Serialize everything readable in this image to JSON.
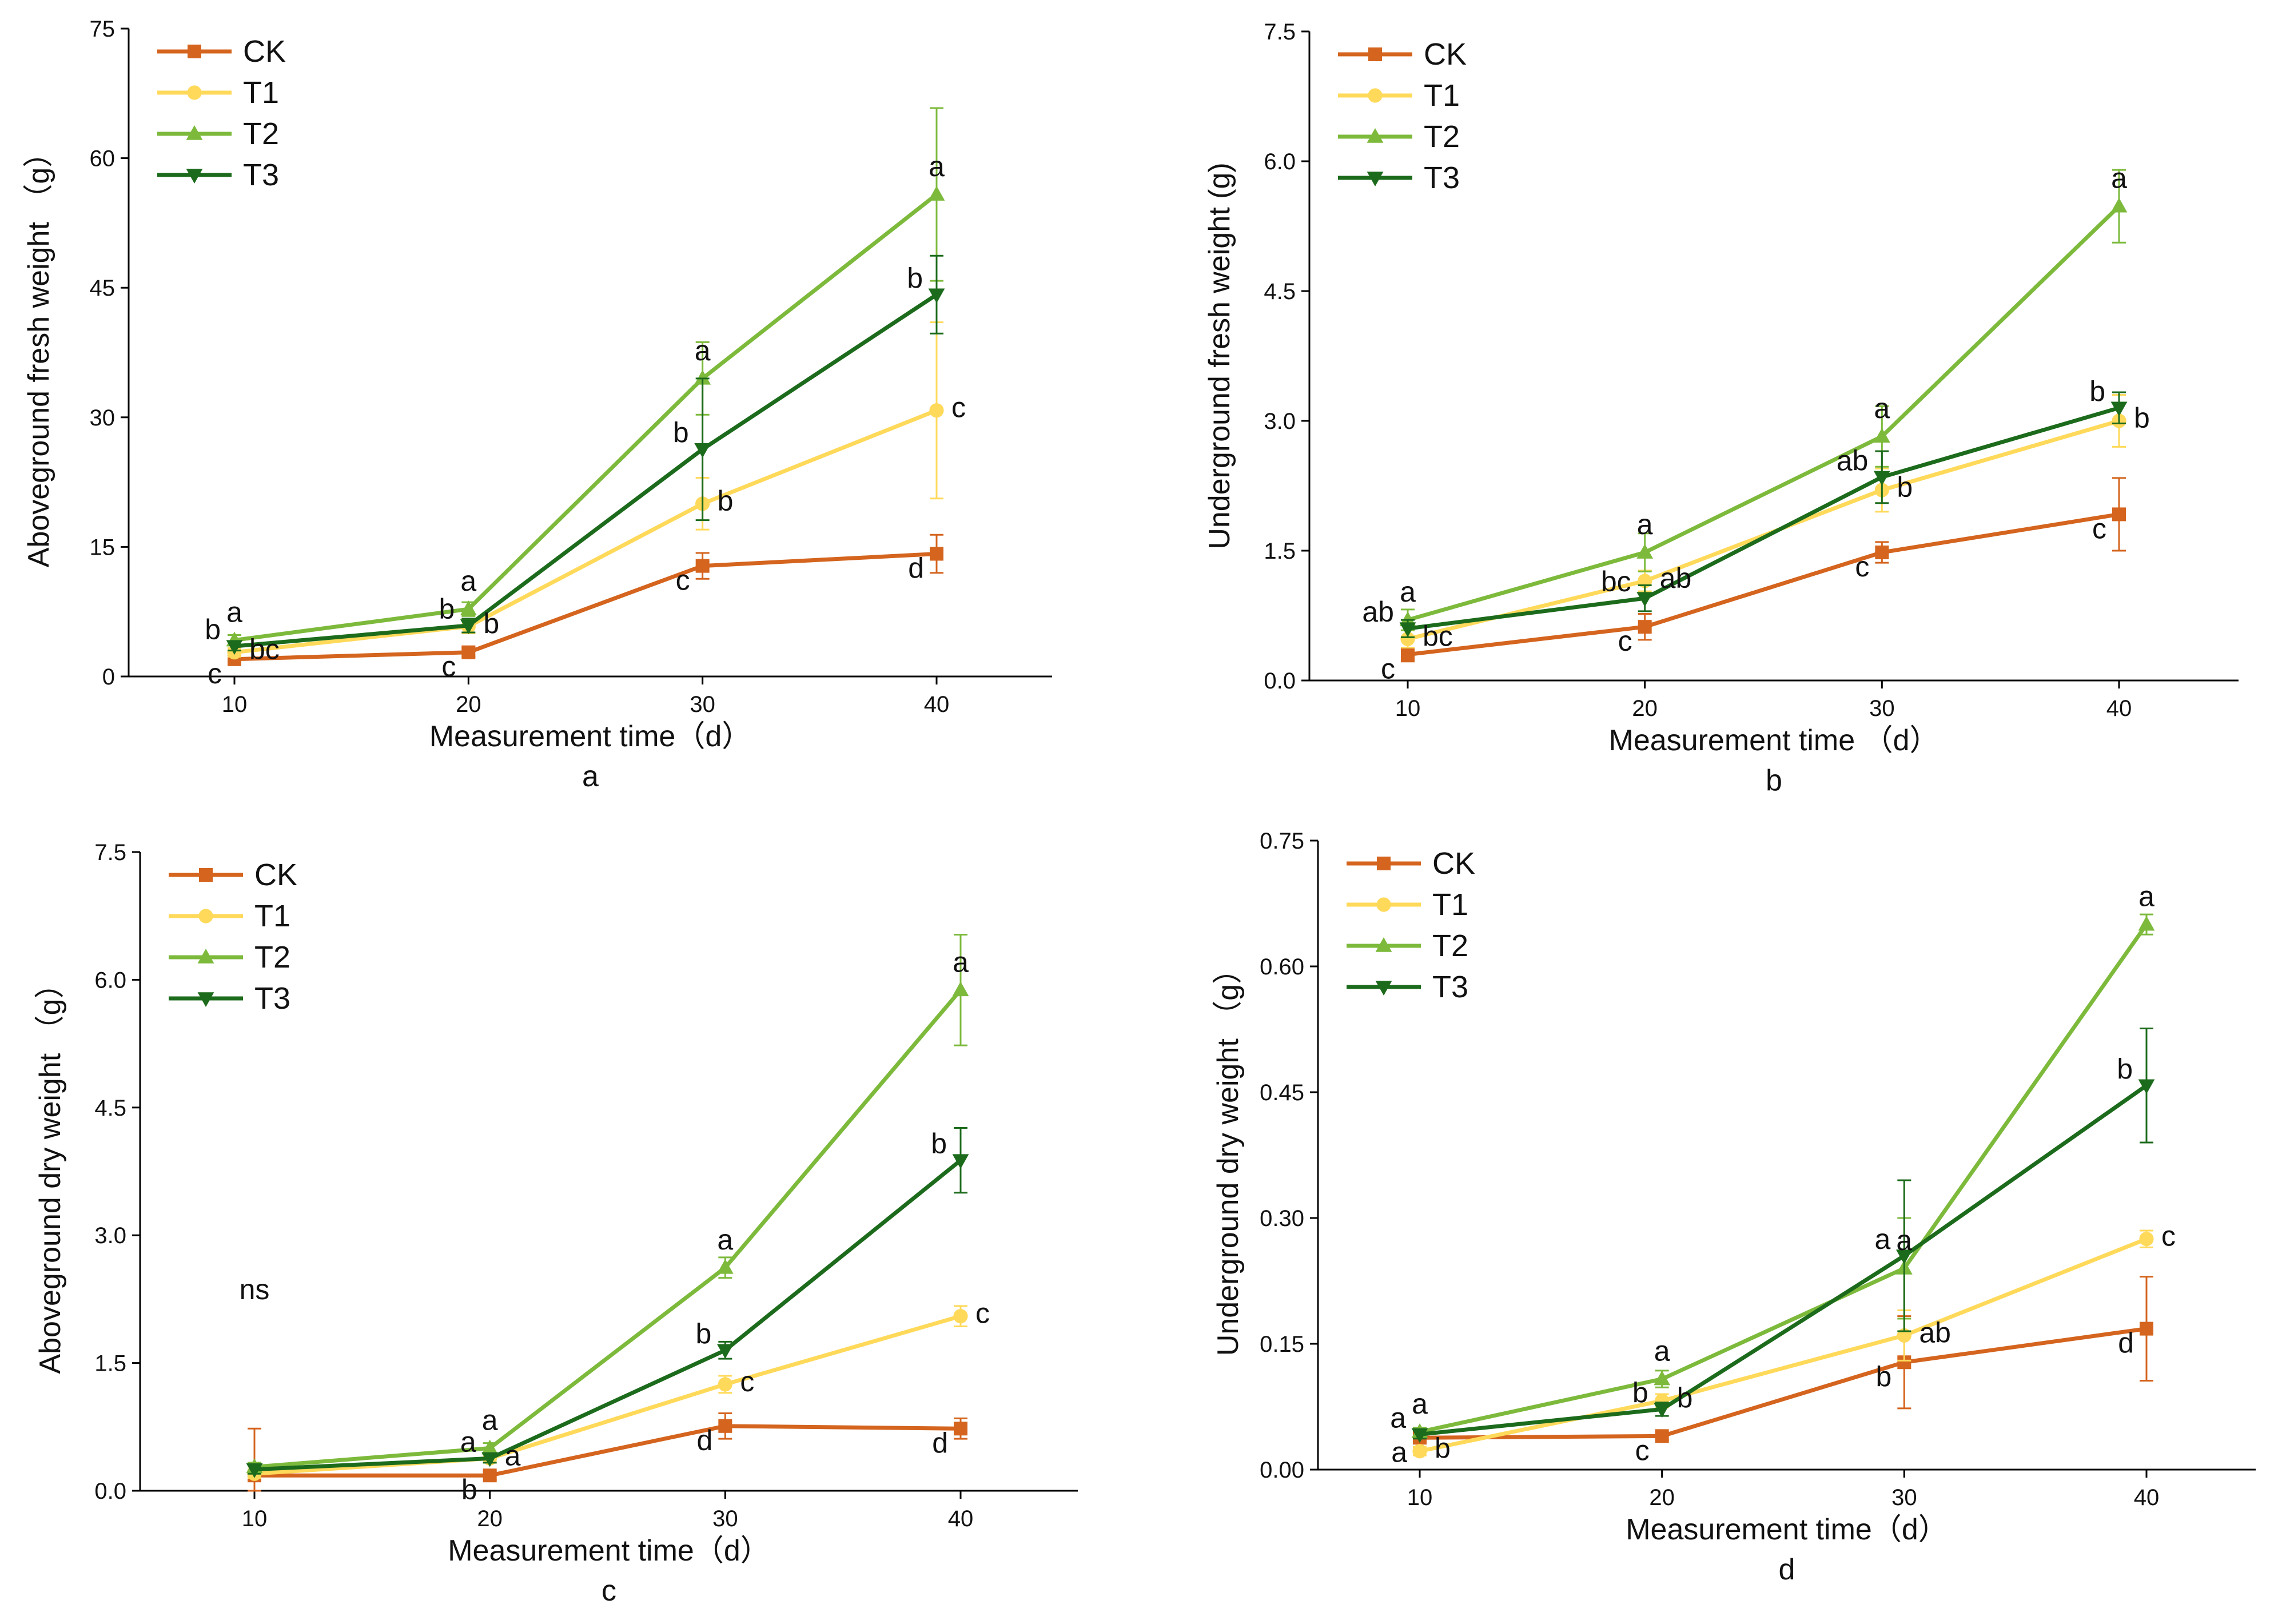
{
  "figure": {
    "series_names": [
      "CK",
      "T1",
      "T2",
      "T3"
    ],
    "series_colors": {
      "CK": "#d4641e",
      "T1": "#ffd95a",
      "T2": "#7dba3c",
      "T3": "#1c6b1c"
    },
    "series_markers": {
      "CK": "square",
      "T1": "circle",
      "T2": "triangle-up",
      "T3": "triangle-down"
    }
  },
  "chart_data": [
    {
      "type": "line",
      "panel": "a",
      "caption": "a",
      "xlabel": "Measurement time（d）",
      "ylabel": "Aboveground fresh weight （g）",
      "x": [
        10,
        20,
        30,
        40
      ],
      "x_tick_labels": [
        "10",
        "20",
        "30",
        "40"
      ],
      "ylim": [
        0,
        75
      ],
      "y_ticks": [
        0,
        15,
        30,
        45,
        60,
        75
      ],
      "y_tick_labels": [
        "0",
        "15",
        "30",
        "45",
        "60",
        "75"
      ],
      "legend_position": "top-left",
      "series": [
        {
          "name": "CK",
          "values": [
            2.0,
            2.8,
            12.8,
            14.2
          ],
          "errors": [
            0.5,
            0.5,
            1.5,
            2.2
          ],
          "letters": [
            "c",
            "c",
            "c",
            "d"
          ]
        },
        {
          "name": "T1",
          "values": [
            2.8,
            5.8,
            20.0,
            30.8
          ],
          "errors": [
            0.5,
            0.8,
            3.0,
            10.2
          ],
          "letters": [
            "bc",
            "b",
            "b",
            "c"
          ]
        },
        {
          "name": "T2",
          "values": [
            4.2,
            7.8,
            34.5,
            55.8
          ],
          "errors": [
            0.6,
            0.8,
            4.2,
            10.0
          ],
          "letters": [
            "a",
            "a",
            "a",
            "a"
          ]
        },
        {
          "name": "T3",
          "values": [
            3.5,
            5.9,
            26.3,
            44.2
          ],
          "errors": [
            0.5,
            0.8,
            8.2,
            4.5
          ],
          "letters": [
            "b",
            "b",
            "b",
            "b"
          ]
        }
      ]
    },
    {
      "type": "line",
      "panel": "b",
      "caption": "b",
      "xlabel": "Measurement time （d）",
      "ylabel": "Underground fresh weight (g)",
      "x": [
        10,
        20,
        30,
        40
      ],
      "x_tick_labels": [
        "10",
        "20",
        "30",
        "40"
      ],
      "ylim": [
        0,
        7.5
      ],
      "y_ticks": [
        0,
        1.5,
        3.0,
        4.5,
        6.0,
        7.5
      ],
      "y_tick_labels": [
        "0.0",
        "1.5",
        "3.0",
        "4.5",
        "6.0",
        "7.5"
      ],
      "legend_position": "top-left",
      "series": [
        {
          "name": "CK",
          "values": [
            0.3,
            0.62,
            1.48,
            1.92
          ],
          "errors": [
            0.08,
            0.15,
            0.12,
            0.42
          ],
          "letters": [
            "c",
            "c",
            "c",
            "c"
          ]
        },
        {
          "name": "T1",
          "values": [
            0.48,
            1.15,
            2.2,
            3.0
          ],
          "errors": [
            0.1,
            0.12,
            0.25,
            0.3
          ],
          "letters": [
            "bc",
            "ab",
            "b",
            "b"
          ]
        },
        {
          "name": "T2",
          "values": [
            0.7,
            1.48,
            2.82,
            5.48
          ],
          "errors": [
            0.12,
            0.22,
            0.35,
            0.42
          ],
          "letters": [
            "a",
            "a",
            "a",
            "a"
          ]
        },
        {
          "name": "T3",
          "values": [
            0.6,
            0.95,
            2.35,
            3.15
          ],
          "errors": [
            0.1,
            0.15,
            0.3,
            0.18
          ],
          "letters": [
            "ab",
            "bc",
            "ab",
            "b"
          ]
        }
      ]
    },
    {
      "type": "line",
      "panel": "c",
      "caption": "c",
      "xlabel": "Measurement time（d）",
      "ylabel": "Aboveground dry weight （g）",
      "x": [
        10,
        20,
        30,
        40
      ],
      "x_tick_labels": [
        "10",
        "20",
        "30",
        "40"
      ],
      "ylim": [
        0,
        7.5
      ],
      "y_ticks": [
        0,
        1.5,
        3.0,
        4.5,
        6.0,
        7.5
      ],
      "y_tick_labels": [
        "0.0",
        "1.5",
        "3.0",
        "4.5",
        "6.0",
        "7.5"
      ],
      "legend_position": "top-left",
      "annotations": [
        {
          "x": 10,
          "text": "ns"
        }
      ],
      "series": [
        {
          "name": "CK",
          "values": [
            0.18,
            0.18,
            0.76,
            0.73
          ],
          "errors": [
            0.55,
            0.05,
            0.15,
            0.12
          ],
          "letters": [
            "",
            "b",
            "d",
            "d"
          ]
        },
        {
          "name": "T1",
          "values": [
            0.2,
            0.38,
            1.25,
            2.05
          ],
          "errors": [
            0.05,
            0.05,
            0.1,
            0.12
          ],
          "letters": [
            "",
            "a",
            "c",
            "c"
          ]
        },
        {
          "name": "T2",
          "values": [
            0.28,
            0.5,
            2.62,
            5.88
          ],
          "errors": [
            0.05,
            0.06,
            0.12,
            0.65
          ],
          "letters": [
            "",
            "a",
            "a",
            "a"
          ]
        },
        {
          "name": "T3",
          "values": [
            0.25,
            0.38,
            1.65,
            3.88
          ],
          "errors": [
            0.05,
            0.05,
            0.1,
            0.38
          ],
          "letters": [
            "",
            "a",
            "b",
            "b"
          ]
        }
      ]
    },
    {
      "type": "line",
      "panel": "d",
      "caption": "d",
      "xlabel": "Measurement time（d）",
      "ylabel": "Underground dry weight （g）",
      "x": [
        10,
        20,
        30,
        40
      ],
      "x_tick_labels": [
        "10",
        "20",
        "30",
        "40"
      ],
      "ylim": [
        0,
        0.75
      ],
      "y_ticks": [
        0,
        0.15,
        0.3,
        0.45,
        0.6,
        0.75
      ],
      "y_tick_labels": [
        "0.00",
        "0.15",
        "0.30",
        "0.45",
        "0.60",
        "0.75"
      ],
      "legend_position": "top-left",
      "series": [
        {
          "name": "CK",
          "values": [
            0.038,
            0.04,
            0.128,
            0.168
          ],
          "errors": [
            0.005,
            0.005,
            0.055,
            0.062
          ],
          "letters": [
            "a",
            "c",
            "b",
            "d"
          ]
        },
        {
          "name": "T1",
          "values": [
            0.022,
            0.082,
            0.16,
            0.275
          ],
          "errors": [
            0.005,
            0.008,
            0.03,
            0.01
          ],
          "letters": [
            "b",
            "b",
            "ab",
            "c"
          ]
        },
        {
          "name": "T2",
          "values": [
            0.045,
            0.108,
            0.24,
            0.65
          ],
          "errors": [
            0.005,
            0.01,
            0.06,
            0.012
          ],
          "letters": [
            "a",
            "a",
            "a",
            "a"
          ]
        },
        {
          "name": "T3",
          "values": [
            0.042,
            0.072,
            0.255,
            0.458
          ],
          "errors": [
            0.005,
            0.008,
            0.09,
            0.068
          ],
          "letters": [
            "a",
            "b",
            "a",
            "b"
          ]
        }
      ]
    }
  ]
}
